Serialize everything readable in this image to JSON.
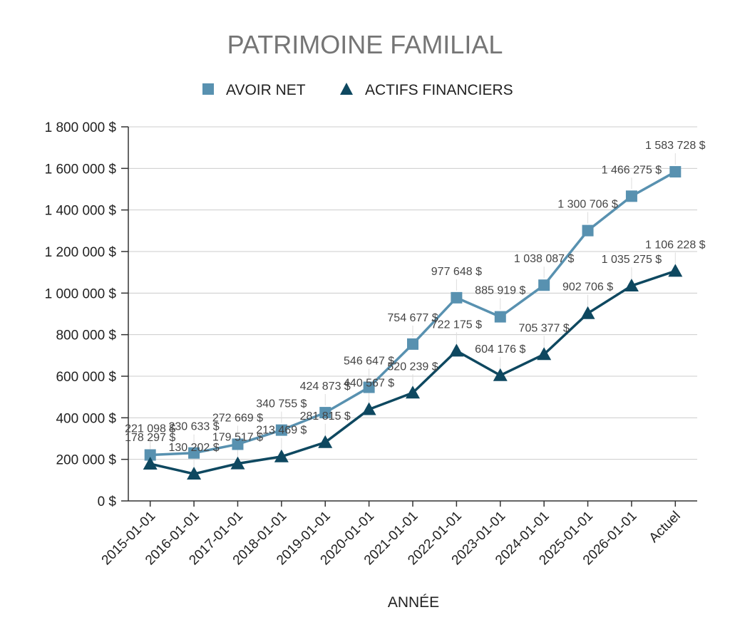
{
  "chart_data": {
    "type": "line",
    "title": "PATRIMOINE FAMILIAL",
    "xlabel": "ANNÉE",
    "ylabel": "",
    "categories": [
      "2015-01-01",
      "2016-01-01",
      "2017-01-01",
      "2018-01-01",
      "2019-01-01",
      "2020-01-01",
      "2021-01-01",
      "2022-01-01",
      "2023-01-01",
      "2024-01-01",
      "2025-01-01",
      "2026-01-01",
      "Actuel"
    ],
    "ylim": [
      0,
      1800000
    ],
    "yticks": [
      0,
      200000,
      400000,
      600000,
      800000,
      1000000,
      1200000,
      1400000,
      1600000,
      1800000
    ],
    "ytick_labels": [
      "0 $",
      "200 000 $",
      "400 000 $",
      "600 000 $",
      "800 000 $",
      "1 000 000 $",
      "1 200 000 $",
      "1 400 000 $",
      "1 600 000 $",
      "1 800 000 $"
    ],
    "grid": true,
    "legend_position": "top-center",
    "series": [
      {
        "name": "AVOIR NET",
        "color": "#5891b0",
        "marker": "square",
        "values": [
          221098,
          230633,
          272669,
          340755,
          424873,
          546647,
          754677,
          977648,
          885919,
          1038087,
          1300706,
          1466275,
          1583728
        ],
        "labels": [
          "221 098 $",
          "230 633 $",
          "272 669 $",
          "340 755 $",
          "424 873 $",
          "546 647 $",
          "754 677 $",
          "977 648 $",
          "885 919 $",
          "1 038 087 $",
          "1 300 706 $",
          "1 466 275 $",
          "1 583 728 $"
        ]
      },
      {
        "name": "ACTIFS FINANCIERS",
        "color": "#0e4860",
        "marker": "triangle",
        "values": [
          178297,
          130202,
          179517,
          213469,
          281815,
          440567,
          520239,
          722175,
          604176,
          705377,
          902706,
          1035275,
          1106228
        ],
        "labels": [
          "178 297 $",
          "130 202 $",
          "179 517 $",
          "213 469 $",
          "281 815 $",
          "440 567 $",
          "520 239 $",
          "722 175 $",
          "604 176 $",
          "705 377 $",
          "902 706 $",
          "1 035 275 $",
          "1 106 228 $"
        ]
      }
    ]
  }
}
